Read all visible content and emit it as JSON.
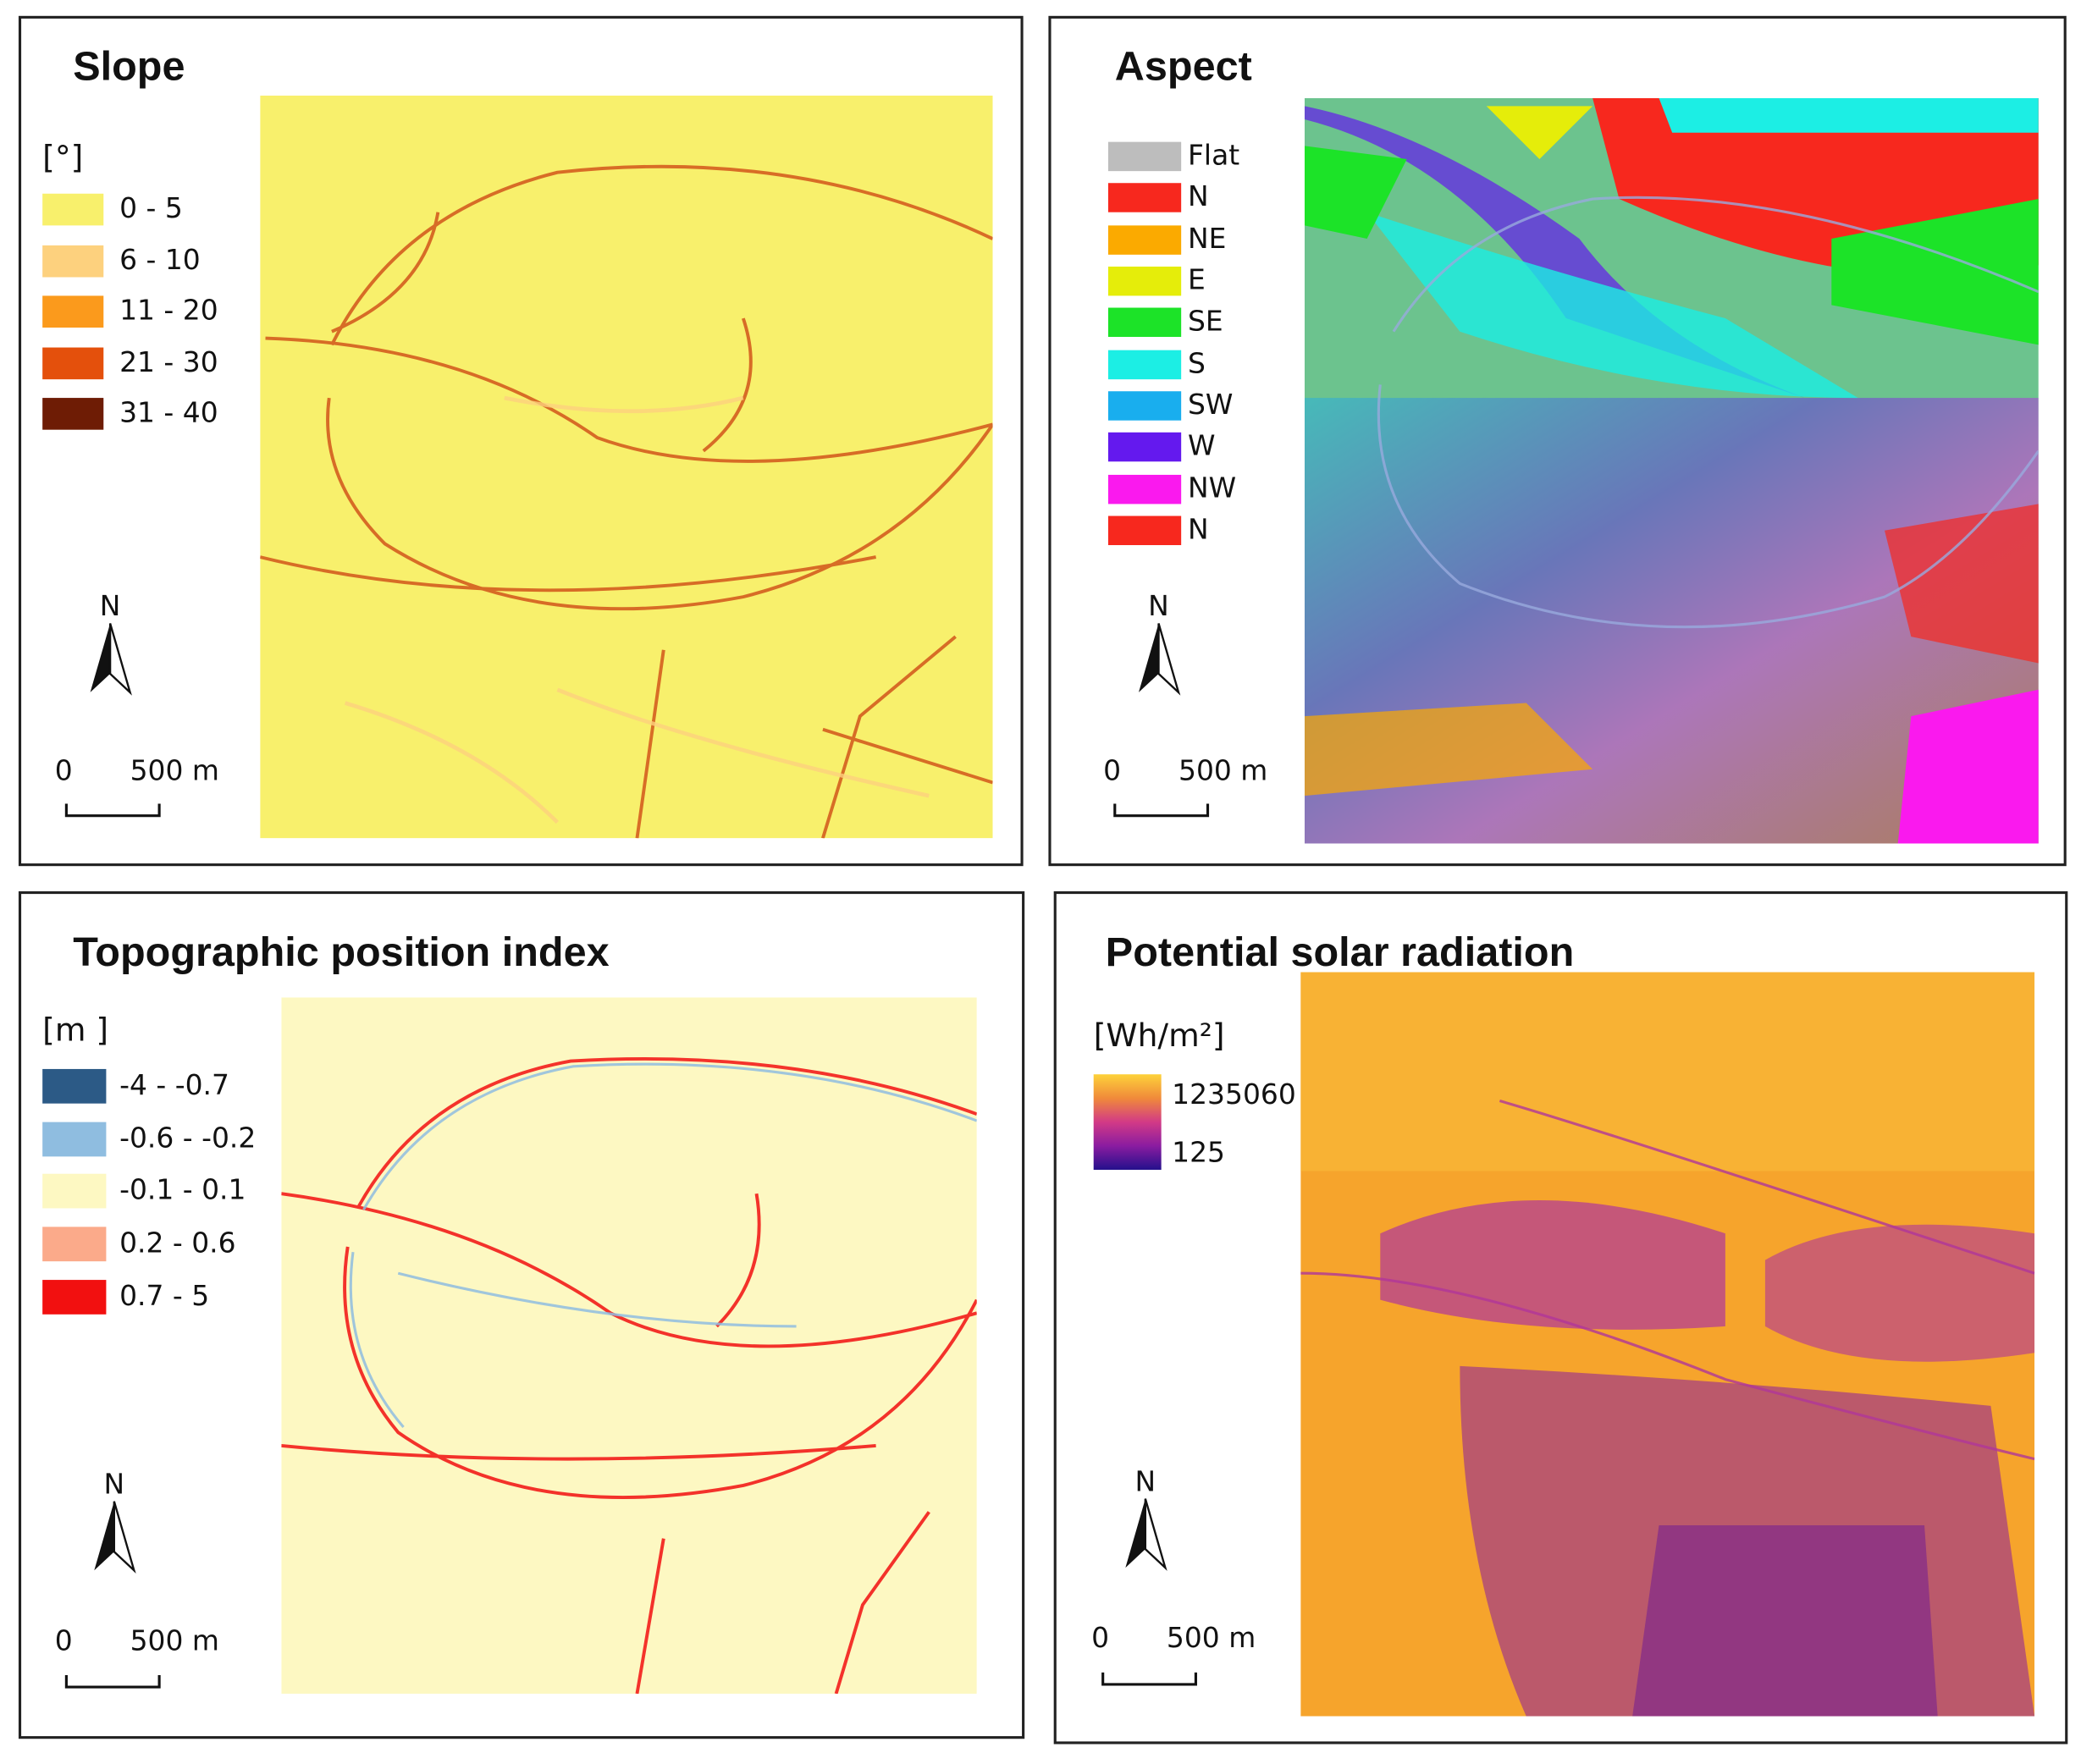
{
  "panels": [
    {
      "title": "Slope",
      "unit": "[°]",
      "legend": [
        {
          "label": "0 - 5",
          "color": "#f8f06c"
        },
        {
          "label": "6 - 10",
          "color": "#fdd17e"
        },
        {
          "label": "11 - 20",
          "color": "#fb9a1c"
        },
        {
          "label": "21 - 30",
          "color": "#e4500c"
        },
        {
          "label": "31 - 40",
          "color": "#6e1c05"
        }
      ],
      "north": "N",
      "scale": {
        "start": "0",
        "end": "500 m"
      }
    },
    {
      "title": "Aspect",
      "legend": [
        {
          "label": "Flat",
          "color": "#bdbdbd"
        },
        {
          "label": "N",
          "color": "#f7281e"
        },
        {
          "label": "NE",
          "color": "#fbaa00"
        },
        {
          "label": "E",
          "color": "#e5ed0a"
        },
        {
          "label": "SE",
          "color": "#1ce328"
        },
        {
          "label": "S",
          "color": "#1ceee4"
        },
        {
          "label": "SW",
          "color": "#19aeee"
        },
        {
          "label": "W",
          "color": "#6419ee"
        },
        {
          "label": "NW",
          "color": "#fa19ee"
        },
        {
          "label": "N",
          "color": "#f7281e"
        }
      ],
      "north": "N",
      "scale": {
        "start": "0",
        "end": "500 m"
      }
    },
    {
      "title": "Topographic position index",
      "unit": "[m ]",
      "legend": [
        {
          "label": "-4 - -0.7",
          "color": "#2c5a86"
        },
        {
          "label": "-0.6 - -0.2",
          "color": "#8fbde0"
        },
        {
          "label": "-0.1 - 0.1",
          "color": "#fdf8c2"
        },
        {
          "label": "0.2 - 0.6",
          "color": "#fbaa8a"
        },
        {
          "label": "0.7 - 5",
          "color": "#f21010"
        }
      ],
      "north": "N",
      "scale": {
        "start": "0",
        "end": "500 m"
      }
    },
    {
      "title": "Potential solar radiation",
      "unit": "[Wh/m²]",
      "ramp": {
        "max": 1235060,
        "min": 125,
        "colors": [
          "#fdd23a",
          "#f08a3a",
          "#d23a86",
          "#8a1ca0",
          "#24108c"
        ]
      },
      "north": "N",
      "scale": {
        "start": "0",
        "end": "500 m"
      }
    }
  ]
}
